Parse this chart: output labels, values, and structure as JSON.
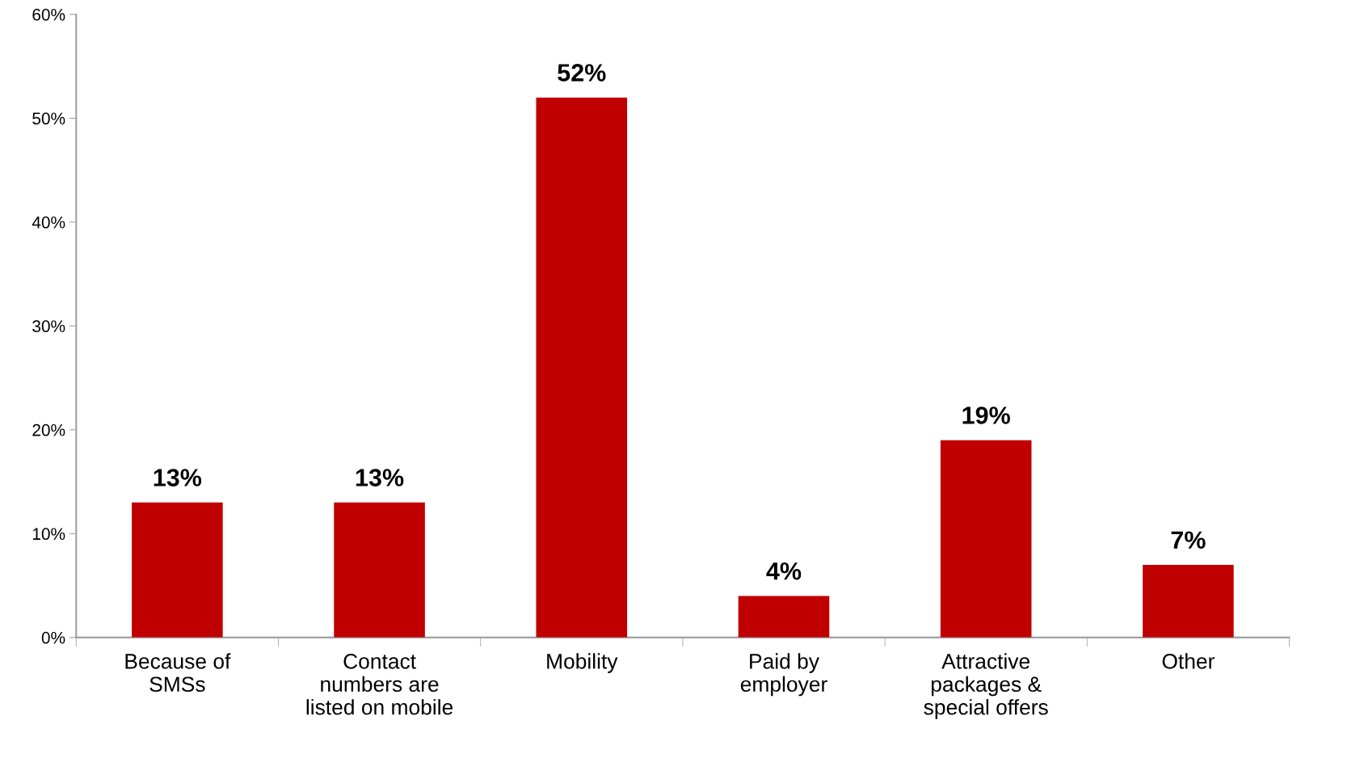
{
  "chart_data": {
    "type": "bar",
    "categories": [
      "Because of\nSMSs",
      "Contact\nnumbers are\nlisted on mobile",
      "Mobility",
      "Paid by\nemployer",
      "Attractive\npackages &\nspecial offers",
      "Other"
    ],
    "values": [
      13,
      13,
      52,
      4,
      19,
      7
    ],
    "color": "#c00000",
    "value_labels": [
      "13%",
      "13%",
      "52%",
      "4%",
      "19%",
      "7%"
    ],
    "ylim": [
      0,
      60
    ],
    "yticks": [
      {
        "value": 0,
        "label": "0%"
      },
      {
        "value": 10,
        "label": "10%"
      },
      {
        "value": 20,
        "label": "20%"
      },
      {
        "value": 30,
        "label": "30%"
      },
      {
        "value": 40,
        "label": "40%"
      },
      {
        "value": 50,
        "label": "50%"
      },
      {
        "value": 60,
        "label": "60%"
      }
    ],
    "grid": false,
    "legend": false
  }
}
